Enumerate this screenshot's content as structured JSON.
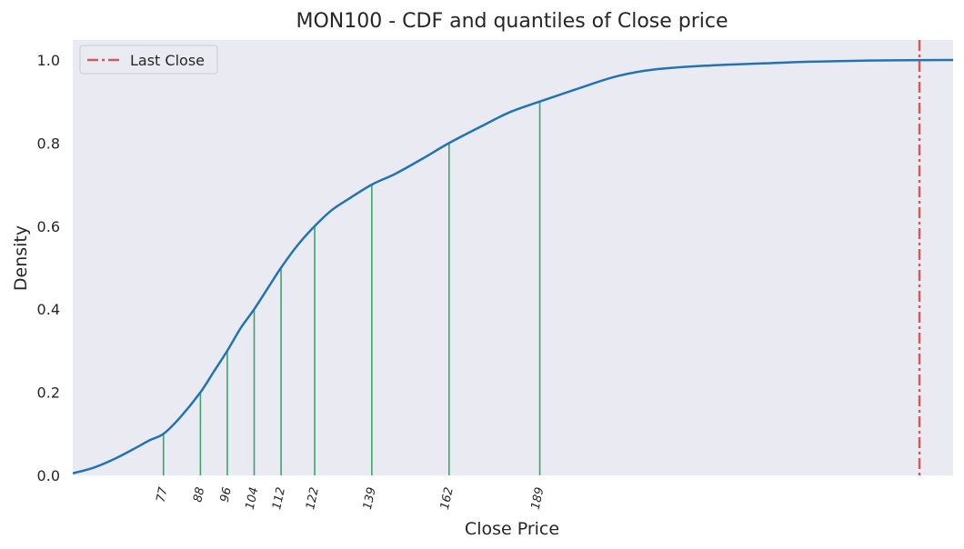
{
  "chart_data": {
    "type": "line",
    "title": "MON100 - CDF and quantiles of Close price",
    "xlabel": "Close Price",
    "ylabel": "Density",
    "ylim": [
      0,
      1.0
    ],
    "xlim": [
      50,
      312
    ],
    "y_ticks": [
      0.0,
      0.2,
      0.4,
      0.6,
      0.8,
      1.0
    ],
    "y_tick_labels": [
      "0.0",
      "0.2",
      "0.4",
      "0.6",
      "0.8",
      "1.0"
    ],
    "grid": false,
    "legend_position": "top-left",
    "series": [
      {
        "values": [
          [
            50,
            0.005
          ],
          [
            56,
            0.018
          ],
          [
            62,
            0.038
          ],
          [
            68,
            0.063
          ],
          [
            73,
            0.085
          ],
          [
            77,
            0.1
          ],
          [
            82,
            0.14
          ],
          [
            88,
            0.2
          ],
          [
            92,
            0.25
          ],
          [
            96,
            0.3
          ],
          [
            100,
            0.355
          ],
          [
            104,
            0.4
          ],
          [
            108,
            0.45
          ],
          [
            112,
            0.5
          ],
          [
            117,
            0.555
          ],
          [
            122,
            0.6
          ],
          [
            127,
            0.638
          ],
          [
            132,
            0.665
          ],
          [
            139,
            0.7
          ],
          [
            146,
            0.726
          ],
          [
            154,
            0.762
          ],
          [
            162,
            0.8
          ],
          [
            172,
            0.842
          ],
          [
            180,
            0.874
          ],
          [
            189,
            0.9
          ],
          [
            200,
            0.93
          ],
          [
            212,
            0.961
          ],
          [
            224,
            0.978
          ],
          [
            240,
            0.987
          ],
          [
            256,
            0.992
          ],
          [
            270,
            0.996
          ],
          [
            290,
            0.999
          ],
          [
            312,
            1.0
          ]
        ],
        "color": "#2274b1"
      }
    ],
    "quantiles": [
      {
        "label": "77",
        "x": 77,
        "y": 0.1
      },
      {
        "label": "88",
        "x": 88,
        "y": 0.2
      },
      {
        "label": "96",
        "x": 96,
        "y": 0.3
      },
      {
        "label": "104",
        "x": 104,
        "y": 0.4
      },
      {
        "label": "112",
        "x": 112,
        "y": 0.5
      },
      {
        "label": "122",
        "x": 122,
        "y": 0.6
      },
      {
        "label": "139",
        "x": 139,
        "y": 0.7
      },
      {
        "label": "162",
        "x": 162,
        "y": 0.8
      },
      {
        "label": "189",
        "x": 189,
        "y": 0.9
      }
    ],
    "quantile_color": "#3aa66b",
    "last_close": {
      "name": "Last Close",
      "x": 302,
      "color": "#cd5c5c"
    },
    "background_color": "#eaeaf2"
  }
}
